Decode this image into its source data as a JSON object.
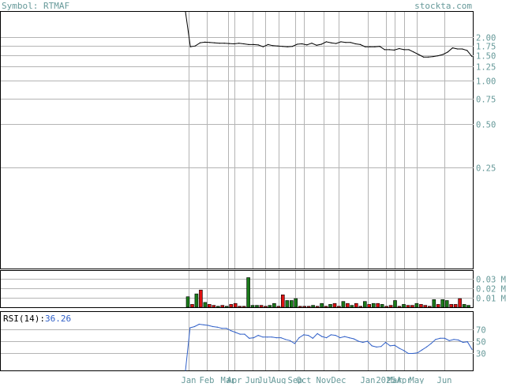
{
  "header": {
    "symbol_label": "Symbol: RTMAF",
    "site": "stockta.com"
  },
  "rsi_panel": {
    "label": "RSI(14):",
    "value": "36.26"
  },
  "colors": {
    "background": "#ffffff",
    "frame": "#000000",
    "grid": "#b4b4b4",
    "label_text": "#669999",
    "price_line": "#000000",
    "rsi_line": "#2f5fc8",
    "volume_up": "#1a7a1a",
    "volume_down": "#dd1111"
  },
  "chart_data": [
    {
      "type": "line",
      "name": "price",
      "y_scale": "log",
      "y_ticks": [
        {
          "value": 2.0,
          "label": "2.00"
        },
        {
          "value": 1.75,
          "label": "1.75"
        },
        {
          "value": 1.5,
          "label": "1.50"
        },
        {
          "value": 1.25,
          "label": "1.25"
        },
        {
          "value": 1.0,
          "label": "1.00"
        },
        {
          "value": 0.75,
          "label": "0.75"
        },
        {
          "value": 0.5,
          "label": "0.50"
        },
        {
          "value": 0.25,
          "label": "0.25"
        }
      ],
      "ylim": [
        0.05,
        3.0
      ],
      "x_labels": [
        "Jan",
        "Feb",
        "Mar",
        "Apr",
        "Jun",
        "Jul",
        "Aug",
        "Sep",
        "Oct",
        "Nov",
        "Dec",
        "Jan",
        "2025",
        "Mar",
        "Apr",
        "May",
        "Jun"
      ],
      "values": [
        3.0,
        1.72,
        1.74,
        1.83,
        1.85,
        1.84,
        1.83,
        1.82,
        1.82,
        1.81,
        1.8,
        1.82,
        1.8,
        1.78,
        1.78,
        1.77,
        1.72,
        1.78,
        1.75,
        1.74,
        1.73,
        1.72,
        1.73,
        1.79,
        1.8,
        1.77,
        1.82,
        1.76,
        1.79,
        1.86,
        1.83,
        1.81,
        1.86,
        1.84,
        1.84,
        1.8,
        1.78,
        1.72,
        1.72,
        1.72,
        1.73,
        1.64,
        1.64,
        1.63,
        1.67,
        1.64,
        1.64,
        1.58,
        1.52,
        1.46,
        1.46,
        1.47,
        1.49,
        1.52,
        1.58,
        1.69,
        1.66,
        1.66,
        1.62,
        1.47
      ]
    },
    {
      "type": "bar",
      "name": "volume",
      "y_ticks": [
        {
          "value": 0.03,
          "label": "0.03 M"
        },
        {
          "value": 0.02,
          "label": "0.02 M"
        },
        {
          "value": 0.01,
          "label": "0.01 M"
        }
      ],
      "ylim": [
        0,
        0.038
      ],
      "values": [
        0.011,
        0.003,
        0.014,
        0.018,
        0.005,
        0.003,
        0.002,
        0.001,
        0.002,
        0.001,
        0.003,
        0.004,
        0.001,
        0.001,
        0.031,
        0.002,
        0.002,
        0.002,
        0.001,
        0.002,
        0.004,
        0.001,
        0.013,
        0.007,
        0.007,
        0.009,
        0.001,
        0.001,
        0.001,
        0.002,
        0.001,
        0.004,
        0.001,
        0.003,
        0.004,
        0.001,
        0.006,
        0.004,
        0.002,
        0.004,
        0.001,
        0.006,
        0.003,
        0.004,
        0.004,
        0.003,
        0.001,
        0.002,
        0.007,
        0.001,
        0.003,
        0.002,
        0.002,
        0.004,
        0.003,
        0.002,
        0.001,
        0.008,
        0.003,
        0.008,
        0.007,
        0.003,
        0.003,
        0.009,
        0.003,
        0.002
      ],
      "up": [
        true,
        false,
        true,
        false,
        true,
        false,
        false,
        true,
        false,
        true,
        false,
        false,
        false,
        false,
        true,
        true,
        true,
        false,
        false,
        true,
        true,
        false,
        false,
        true,
        true,
        true,
        false,
        false,
        false,
        true,
        false,
        true,
        false,
        true,
        false,
        false,
        true,
        false,
        true,
        false,
        false,
        true,
        false,
        true,
        false,
        true,
        false,
        false,
        true,
        false,
        true,
        false,
        false,
        true,
        false,
        false,
        false,
        true,
        false,
        true,
        true,
        false,
        false,
        false,
        true,
        true
      ]
    },
    {
      "type": "line",
      "name": "RSI(14)",
      "y_ticks": [
        {
          "value": 70,
          "label": "70"
        },
        {
          "value": 50,
          "label": "50"
        },
        {
          "value": 30,
          "label": "30"
        }
      ],
      "ylim": [
        0,
        100
      ],
      "values": [
        0,
        73,
        75,
        79,
        78,
        77,
        75,
        74,
        72,
        72,
        68,
        65,
        62,
        62,
        55,
        56,
        60,
        57,
        57,
        57,
        56,
        56,
        53,
        51,
        46,
        56,
        61,
        60,
        55,
        63,
        58,
        56,
        61,
        60,
        56,
        58,
        56,
        54,
        50,
        48,
        50,
        42,
        40,
        41,
        48,
        42,
        43,
        38,
        34,
        29,
        29,
        30,
        35,
        40,
        46,
        53,
        55,
        55,
        51,
        53,
        52,
        48,
        49,
        36
      ]
    }
  ]
}
